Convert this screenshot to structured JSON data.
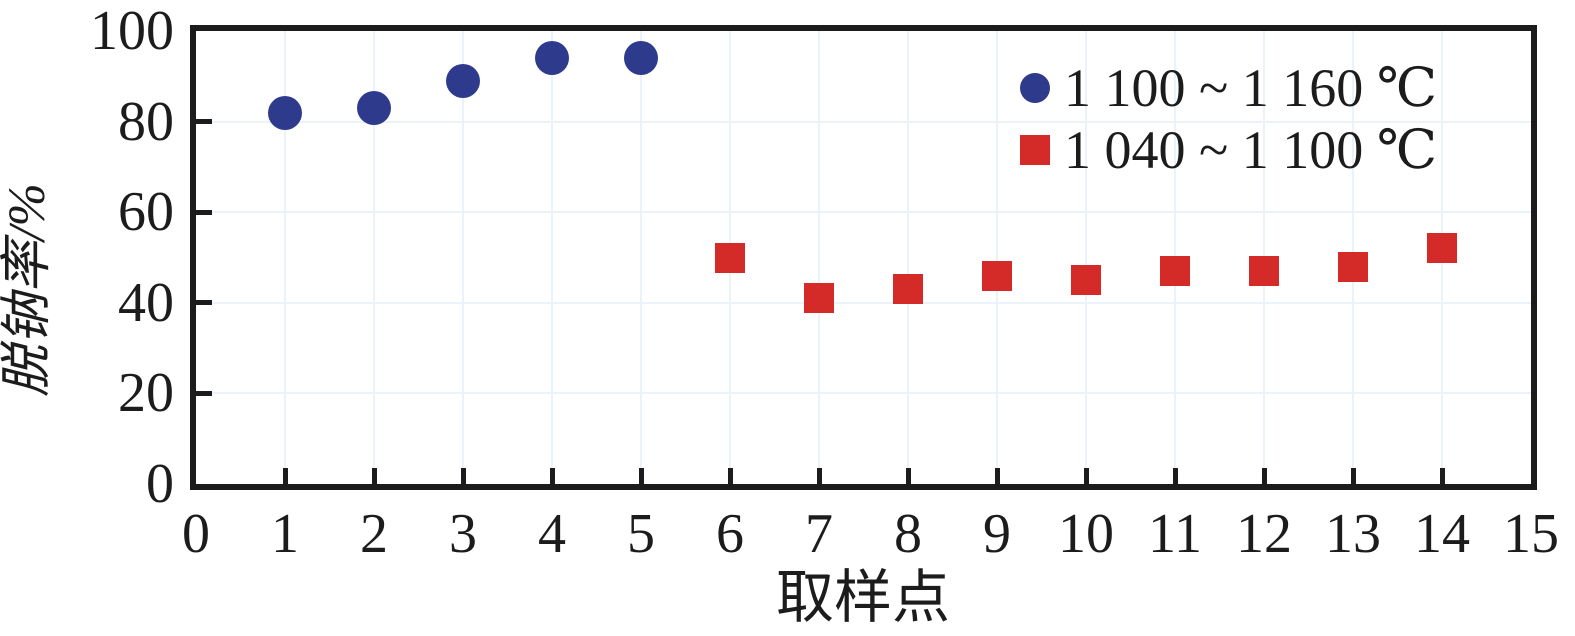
{
  "chart_data": {
    "type": "scatter",
    "title": "",
    "xlabel": "取样点",
    "ylabel": "脱钠率/%",
    "xlim": [
      0,
      15
    ],
    "ylim": [
      0,
      100
    ],
    "x_ticks": [
      0,
      1,
      2,
      3,
      4,
      5,
      6,
      7,
      8,
      9,
      10,
      11,
      12,
      13,
      14,
      15
    ],
    "y_ticks": [
      0,
      20,
      40,
      60,
      80,
      100
    ],
    "grid": true,
    "legend_position": "top-right",
    "series": [
      {
        "name": "1 100 ~ 1 160 ℃",
        "marker": "circle",
        "color": "#2e3a8c",
        "x": [
          1,
          2,
          3,
          4,
          5
        ],
        "y": [
          82,
          83,
          89,
          94,
          94
        ]
      },
      {
        "name": "1 040 ~ 1 100 ℃",
        "marker": "square",
        "color": "#d42a28",
        "x": [
          6,
          7,
          8,
          9,
          10,
          11,
          12,
          13,
          14
        ],
        "y": [
          50,
          41,
          43,
          46,
          45,
          47,
          47,
          48,
          52
        ]
      }
    ]
  },
  "colors": {
    "axis": "#1c1c1c",
    "grid": "#e9f3f9",
    "text": "#1c1c1c",
    "series_blue": "#2e3a8c",
    "series_red": "#d42a28",
    "background": "#ffffff"
  }
}
